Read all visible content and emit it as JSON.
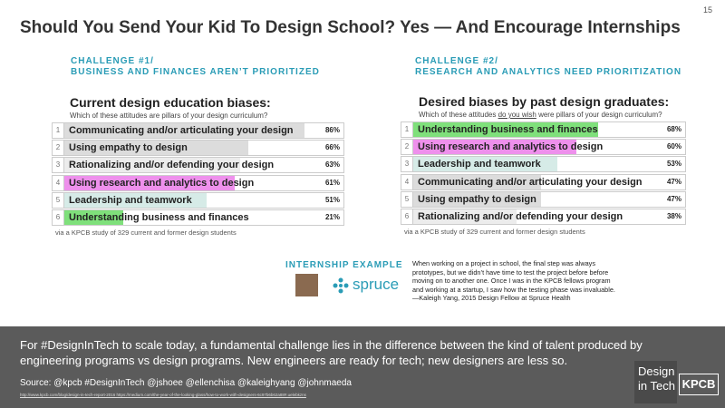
{
  "page_number": "15",
  "title": "Should You Send Your Kid To Design School? Yes — And Encourage Internships",
  "panels": [
    {
      "kicker": "CHALLENGE #1/",
      "heading": "BUSINESS AND FINANCES AREN’T PRIORITIZED",
      "chart_title": "Current design education biases:",
      "question": [
        "Which of these attitudes are pillars of your design curriculum?"
      ],
      "xlim": [
        0,
        100
      ],
      "rows": [
        {
          "rank": "1",
          "label": "Communicating and/or articulating your design",
          "value": 86,
          "value_label": "86%",
          "color": "#dcdcdc"
        },
        {
          "rank": "2",
          "label": "Using empathy to design",
          "value": 66,
          "value_label": "66%",
          "color": "#dcdcdc"
        },
        {
          "rank": "3",
          "label": "Rationalizing and/or defending your design",
          "value": 63,
          "value_label": "63%",
          "color": "#ececec"
        },
        {
          "rank": "4",
          "label": "Using research and analytics to design",
          "value": 61,
          "value_label": "61%",
          "color": "#ee90ec"
        },
        {
          "rank": "5",
          "label": "Leadership and teamwork",
          "value": 51,
          "value_label": "51%",
          "color": "#d6ebe7"
        },
        {
          "rank": "6",
          "label": "Understanding business and finances",
          "value": 21,
          "value_label": "21%",
          "color": "#7fe07b"
        }
      ],
      "note": "via a KPCB study of 329 current and former design students"
    },
    {
      "kicker": "CHALLENGE #2/",
      "heading": "RESEARCH AND ANALYTICS NEED PRIORITIZATION",
      "chart_title": "Desired biases by past design graduates:",
      "question": [
        "Which of these attitudes ",
        "do you wish",
        " were pillars of your design curriculum?"
      ],
      "xlim": [
        0,
        100
      ],
      "rows": [
        {
          "rank": "1",
          "label": "Understanding business and finances",
          "value": 68,
          "value_label": "68%",
          "color": "#7fe07b"
        },
        {
          "rank": "2",
          "label": "Using research and analytics to design",
          "value": 60,
          "value_label": "60%",
          "color": "#ee90ec"
        },
        {
          "rank": "3",
          "label": "Leadership and teamwork",
          "value": 53,
          "value_label": "53%",
          "color": "#d6ebe7"
        },
        {
          "rank": "4",
          "label": "Communicating and/or articulating your design",
          "value": 47,
          "value_label": "47%",
          "color": "#dcdcdc"
        },
        {
          "rank": "5",
          "label": "Using empathy to design",
          "value": 47,
          "value_label": "47%",
          "color": "#dcdcdc"
        },
        {
          "rank": "6",
          "label": "Rationalizing and/or defending your design",
          "value": 38,
          "value_label": "38%",
          "color": "#ececec"
        }
      ],
      "note": "via a KPCB study of 329 current and former design students"
    }
  ],
  "internship": {
    "label": "INTERNSHIP EXAMPLE",
    "logo": "spruce",
    "quote": [
      "When working on a project in school, the final step was always",
      "prototypes, but we didn’t have time to test the project before before",
      "moving on to another one. Once I was in the KPCB fellows program",
      "and working at a startup, I saw how the testing phase was invaluable.",
      "—Kaleigh Yang, 2015 Design Fellow at Spruce Health"
    ]
  },
  "footer": {
    "text": [
      "For #DesignInTech to scale today, a fundamental challenge lies in the difference between the kind of talent produced by",
      "engineering programs vs design programs. New engineers are ready for tech; new designers are less so."
    ],
    "source": "Source: @kpcb #DesignInTech @jshoee @ellenchisa @kaleighyang @johnmaeda",
    "link": "http://www.kpcb.com/blog/design-in-tech-report-2016  https://medium.com/the-year-of-the-looking-glass/how-to-work-with-designers-6c97b6b62a88#.uelebkzns",
    "logo": [
      "Design",
      "in Tech",
      "KPCB"
    ]
  }
}
